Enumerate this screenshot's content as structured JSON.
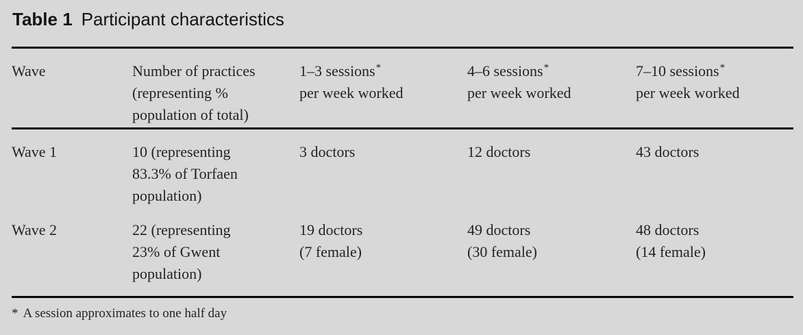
{
  "title": {
    "label": "Table 1",
    "text": "Participant characteristics"
  },
  "table": {
    "header": [
      {
        "line1": "Wave"
      },
      {
        "line1": "Number of practices",
        "line2": "(representing %",
        "line3": "population of total)"
      },
      {
        "line1": "1–3 sessions",
        "star": "*",
        "line2": "per week worked"
      },
      {
        "line1": "4–6 sessions",
        "star": "*",
        "line2": "per week worked"
      },
      {
        "line1": "7–10 sessions",
        "star": "*",
        "line2": "per week worked"
      }
    ],
    "rows": [
      {
        "wave": "Wave 1",
        "practices": {
          "line1": "10 (representing",
          "line2": "83.3% of Torfaen",
          "line3": "population)"
        },
        "sessions_1_3": {
          "line1": "3 doctors"
        },
        "sessions_4_6": {
          "line1": "12 doctors"
        },
        "sessions_7_10": {
          "line1": "43 doctors"
        }
      },
      {
        "wave": "Wave 2",
        "practices": {
          "line1": "22 (representing",
          "line2": "23% of Gwent",
          "line3": "population)"
        },
        "sessions_1_3": {
          "line1": "19 doctors",
          "line2": "(7 female)"
        },
        "sessions_4_6": {
          "line1": "49 doctors",
          "line2": "(30 female)"
        },
        "sessions_7_10": {
          "line1": "48 doctors",
          "line2": "(14 female)"
        }
      }
    ]
  },
  "footnote": {
    "star": "*",
    "text": "A session approximates to one half day"
  },
  "colors": {
    "background": "#d8d8d8",
    "rule": "#060606",
    "text": "#232323",
    "title_text": "#141414"
  }
}
